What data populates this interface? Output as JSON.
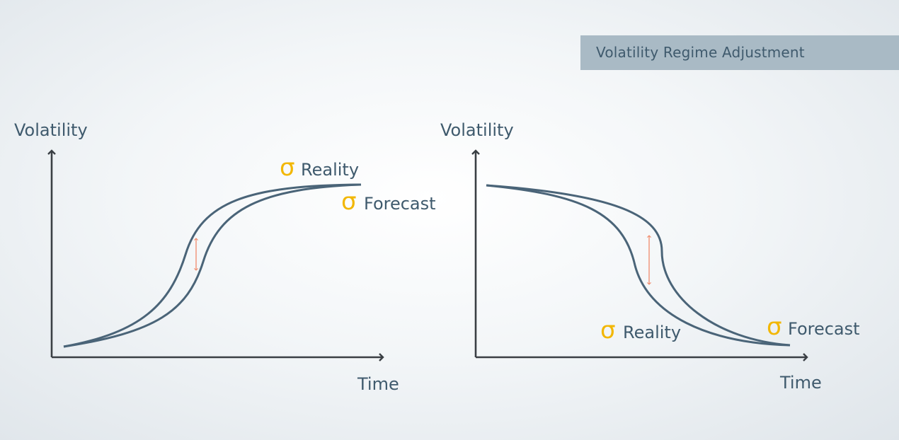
{
  "title": "Volatility Regime Adjustment",
  "left_panel": {
    "y_axis_label": "Volatility",
    "x_axis_label": "Time",
    "reality_symbol": "σ",
    "reality_label": "Reality",
    "forecast_symbol": "σ",
    "forecast_label": "Forecast"
  },
  "right_panel": {
    "y_axis_label": "Volatility",
    "x_axis_label": "Time",
    "reality_symbol": "σ",
    "reality_label": "Reality",
    "forecast_symbol": "σ",
    "forecast_label": "Forecast"
  },
  "colors": {
    "curve": "#4a6478",
    "sigma": "#f2b705",
    "gap_arrow": "#f08a6b",
    "axis": "#3a3f44",
    "banner": "#a9bac5"
  }
}
